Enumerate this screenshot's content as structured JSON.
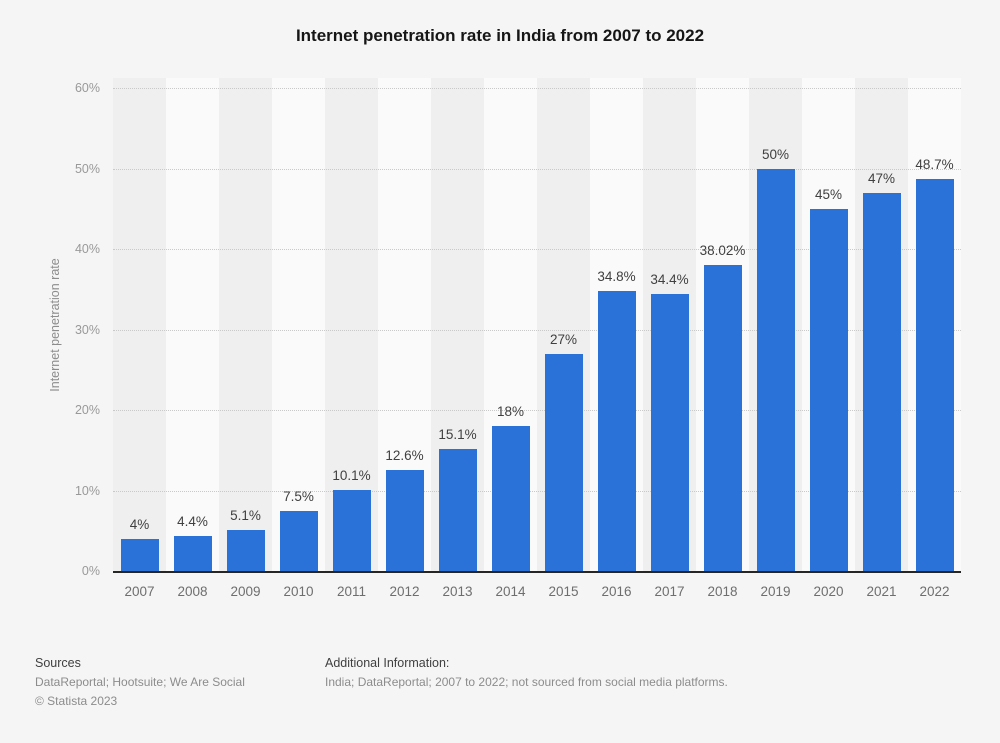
{
  "chart_data": {
    "type": "bar",
    "title": "Internet penetration rate in India from 2007 to 2022",
    "xlabel": "",
    "ylabel": "Internet penetration rate",
    "categories": [
      "2007",
      "2008",
      "2009",
      "2010",
      "2011",
      "2012",
      "2013",
      "2014",
      "2015",
      "2016",
      "2017",
      "2018",
      "2019",
      "2020",
      "2021",
      "2022"
    ],
    "values": [
      4,
      4.4,
      5.1,
      7.5,
      10.1,
      12.6,
      15.1,
      18,
      27,
      34.8,
      34.4,
      38.02,
      50,
      45,
      47,
      48.7
    ],
    "value_labels": [
      "4%",
      "4.4%",
      "5.1%",
      "7.5%",
      "10.1%",
      "12.6%",
      "15.1%",
      "18%",
      "27%",
      "34.8%",
      "34.4%",
      "38.02%",
      "50%",
      "45%",
      "47%",
      "48.7%"
    ],
    "ylim": [
      0,
      60
    ],
    "ytick_labels": [
      "0%",
      "10%",
      "20%",
      "30%",
      "40%",
      "50%",
      "60%"
    ],
    "grid": "horizontal-dotted",
    "legend": "none",
    "bar_color": "#2b72d8"
  },
  "footer": {
    "sources_label": "Sources",
    "sources_text": "DataReportal; Hootsuite; We Are Social",
    "copyright": "© Statista 2023",
    "additional_info_label": "Additional Information:",
    "additional_info_text": "India; DataReportal; 2007 to 2022; not sourced from social media platforms."
  }
}
